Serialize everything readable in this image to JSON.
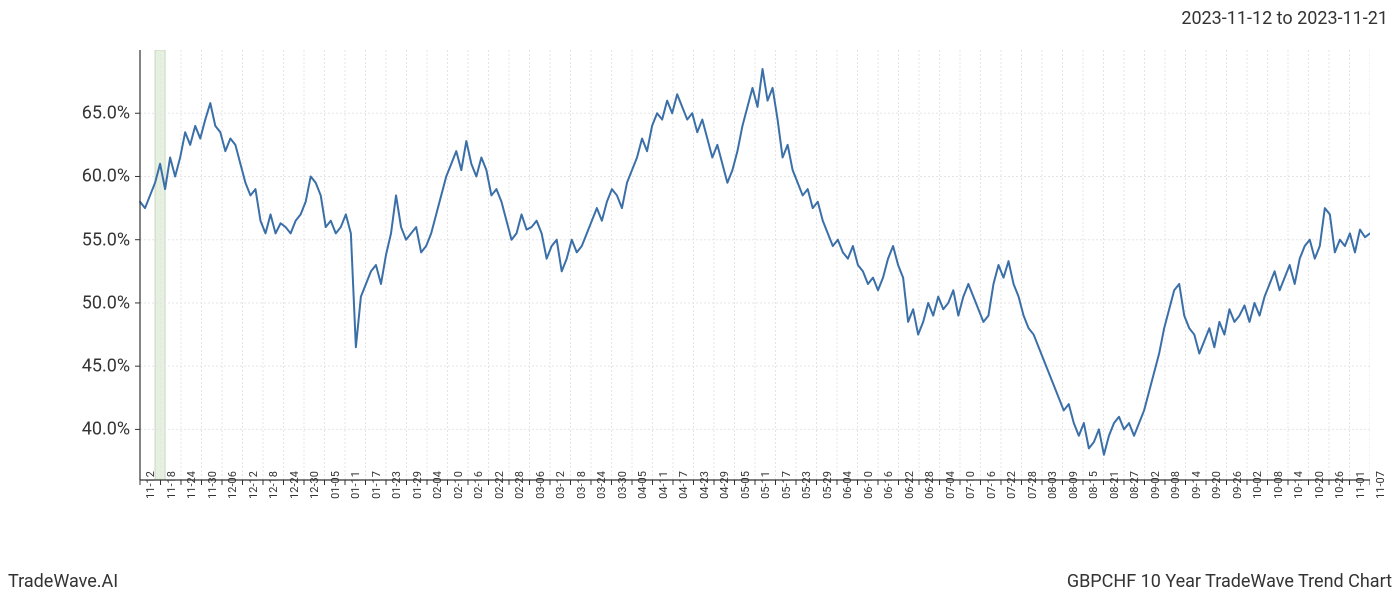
{
  "header": {
    "date_range": "2023-11-12 to 2023-11-21"
  },
  "footer": {
    "left": "TradeWave.AI",
    "right": "GBPCHF 10 Year TradeWave Trend Chart"
  },
  "chart": {
    "type": "line",
    "background_color": "#ffffff",
    "plot_background": "#ffffff",
    "border_color": "#333333",
    "grid_color": "#e5e5e5",
    "grid_dash": "2,2",
    "line_color": "#3b6fa8",
    "line_width": 2,
    "highlight_band": {
      "start_index": 3,
      "end_index": 5,
      "fill_color": "#e6f0e0",
      "border_color": "#c8d8c0"
    },
    "ylim": [
      36,
      70
    ],
    "y_ticks": [
      40.0,
      45.0,
      50.0,
      55.0,
      60.0,
      65.0
    ],
    "y_tick_labels": [
      "40.0%",
      "45.0%",
      "50.0%",
      "55.0%",
      "60.0%",
      "65.0%"
    ],
    "y_label_fontsize": 18,
    "x_labels": [
      "11-12",
      "11-18",
      "11-24",
      "11-30",
      "12-06",
      "12-12",
      "12-18",
      "12-24",
      "12-30",
      "01-05",
      "01-11",
      "01-17",
      "01-23",
      "01-29",
      "02-04",
      "02-10",
      "02-16",
      "02-22",
      "02-28",
      "03-06",
      "03-12",
      "03-18",
      "03-24",
      "03-30",
      "04-05",
      "04-11",
      "04-17",
      "04-23",
      "04-29",
      "05-05",
      "05-11",
      "05-17",
      "05-23",
      "05-29",
      "06-04",
      "06-10",
      "06-16",
      "06-22",
      "06-28",
      "07-04",
      "07-10",
      "07-16",
      "07-22",
      "07-28",
      "08-03",
      "08-09",
      "08-15",
      "08-21",
      "08-27",
      "09-02",
      "09-08",
      "09-14",
      "09-20",
      "09-26",
      "10-02",
      "10-08",
      "10-14",
      "10-20",
      "10-26",
      "11-01",
      "11-07"
    ],
    "x_label_fontsize": 11,
    "data": [
      58.0,
      57.5,
      58.5,
      59.5,
      61.0,
      59.0,
      61.5,
      60.0,
      61.5,
      63.5,
      62.5,
      64.0,
      63.0,
      64.5,
      65.8,
      64.0,
      63.5,
      62.0,
      63.0,
      62.5,
      61.0,
      59.5,
      58.5,
      59.0,
      56.5,
      55.5,
      57.0,
      55.5,
      56.3,
      56.0,
      55.5,
      56.5,
      57.0,
      58.0,
      60.0,
      59.5,
      58.5,
      56.0,
      56.5,
      55.5,
      56.0,
      57.0,
      55.5,
      46.5,
      50.5,
      51.5,
      52.5,
      53.0,
      51.5,
      53.8,
      55.5,
      58.5,
      56.0,
      55.0,
      55.5,
      56.0,
      54.0,
      54.5,
      55.5,
      57.0,
      58.5,
      60.0,
      61.0,
      62.0,
      60.5,
      62.8,
      61.0,
      60.0,
      61.5,
      60.5,
      58.5,
      59.0,
      58.0,
      56.5,
      55.0,
      55.5,
      57.0,
      55.8,
      56.0,
      56.5,
      55.5,
      53.5,
      54.5,
      55.0,
      52.5,
      53.5,
      55.0,
      54.0,
      54.5,
      55.5,
      56.5,
      57.5,
      56.5,
      58.0,
      59.0,
      58.5,
      57.5,
      59.5,
      60.5,
      61.5,
      63.0,
      62.0,
      64.0,
      65.0,
      64.5,
      66.0,
      65.0,
      66.5,
      65.5,
      64.5,
      65.0,
      63.5,
      64.5,
      63.0,
      61.5,
      62.5,
      61.0,
      59.5,
      60.5,
      62.0,
      64.0,
      65.5,
      67.0,
      65.5,
      68.5,
      66.0,
      67.0,
      64.5,
      61.5,
      62.5,
      60.5,
      59.5,
      58.5,
      59.0,
      57.5,
      58.0,
      56.5,
      55.5,
      54.5,
      55.0,
      54.0,
      53.5,
      54.5,
      53.0,
      52.5,
      51.5,
      52.0,
      51.0,
      52.0,
      53.5,
      54.5,
      53.0,
      52.0,
      48.5,
      49.5,
      47.5,
      48.5,
      50.0,
      49.0,
      50.5,
      49.5,
      50.0,
      51.0,
      49.0,
      50.5,
      51.5,
      50.5,
      49.5,
      48.5,
      49.0,
      51.5,
      53.0,
      52.0,
      53.3,
      51.5,
      50.5,
      49.0,
      48.0,
      47.5,
      46.5,
      45.5,
      44.5,
      43.5,
      42.5,
      41.5,
      42.0,
      40.5,
      39.5,
      40.5,
      38.5,
      39.0,
      40.0,
      38.0,
      39.5,
      40.5,
      41.0,
      40.0,
      40.5,
      39.5,
      40.5,
      41.5,
      43.0,
      44.5,
      46.0,
      48.0,
      49.5,
      51.0,
      51.5,
      49.0,
      48.0,
      47.5,
      46.0,
      47.0,
      48.0,
      46.5,
      48.5,
      47.5,
      49.5,
      48.5,
      49.0,
      49.8,
      48.5,
      50.0,
      49.0,
      50.5,
      51.5,
      52.5,
      51.0,
      52.0,
      53.0,
      51.5,
      53.5,
      54.5,
      55.0,
      53.5,
      54.5,
      57.5,
      57.0,
      54.0,
      55.0,
      54.5,
      55.5,
      54.0,
      55.8,
      55.2,
      55.5
    ]
  }
}
